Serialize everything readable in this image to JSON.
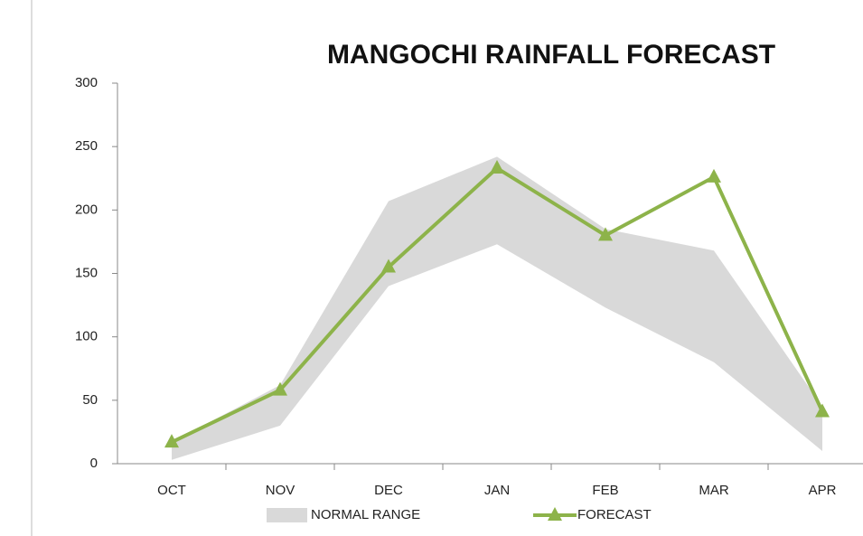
{
  "chart_data": {
    "type": "line",
    "title": "MANGOCHI RAINFALL FORECAST",
    "categories": [
      "OCT",
      "NOV",
      "DEC",
      "JAN",
      "FEB",
      "MAR",
      "APR"
    ],
    "series": [
      {
        "name": "NORMAL RANGE",
        "type": "range",
        "color": "#d9d9d9",
        "low": [
          3,
          30,
          140,
          173,
          123,
          80,
          10
        ],
        "high": [
          17,
          62,
          207,
          242,
          185,
          168,
          45
        ]
      },
      {
        "name": "FORECAST",
        "type": "line",
        "color": "#8db34a",
        "values": [
          17,
          58,
          155,
          233,
          180,
          226,
          41
        ]
      }
    ],
    "ylim": [
      0,
      300
    ],
    "yticks": [
      0,
      50,
      100,
      150,
      200,
      250,
      300
    ]
  }
}
